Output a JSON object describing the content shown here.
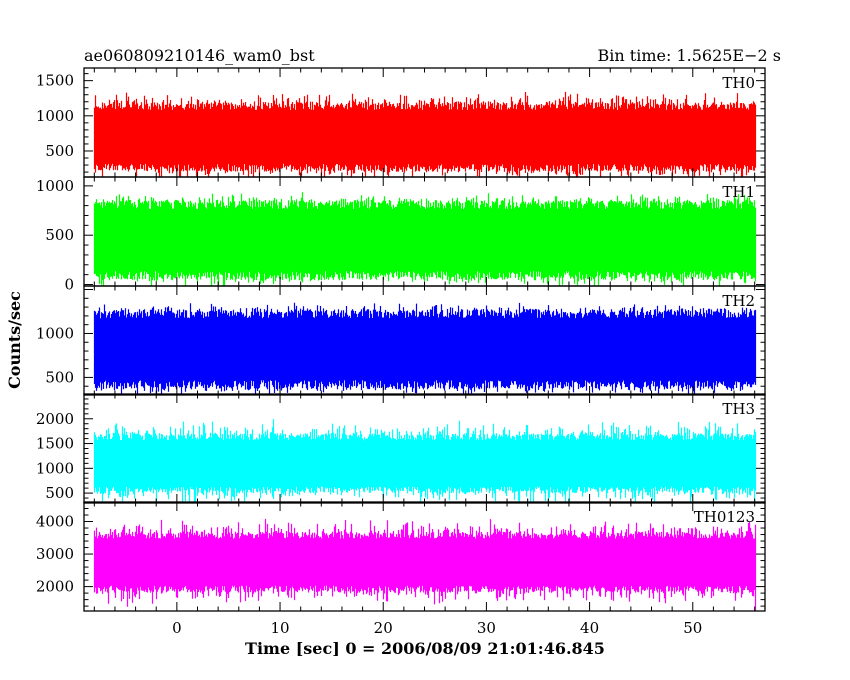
{
  "header": {
    "left_title": "ae060809210146_wam0_bst",
    "right_title": "Bin time: 1.5625E−2 s"
  },
  "chart_data": {
    "type": "line",
    "xlabel": "Time [sec] 0 = 2006/08/09 21:01:46.845",
    "ylabel": "Counts/sec",
    "xlim": [
      -9,
      57
    ],
    "x_range": [
      -8,
      56
    ],
    "bin_time": 0.015625,
    "x_ticks": [
      {
        "value": 0,
        "label": "0"
      },
      {
        "value": 10,
        "label": "10"
      },
      {
        "value": 20,
        "label": "20"
      },
      {
        "value": 30,
        "label": "30"
      },
      {
        "value": 40,
        "label": "40"
      },
      {
        "value": 50,
        "label": "50"
      }
    ],
    "grid": false,
    "panels": [
      {
        "name": "TH0",
        "color": "#ff0000",
        "ylim": [
          130,
          1680
        ],
        "typical_range": [
          250,
          1150
        ],
        "extreme_range": [
          150,
          1650
        ],
        "mean": 700,
        "y_ticks": [
          {
            "value": 500,
            "label": "500"
          },
          {
            "value": 1000,
            "label": "1000"
          },
          {
            "value": 1500,
            "label": "1500"
          }
        ]
      },
      {
        "name": "TH1",
        "color": "#00ff00",
        "ylim": [
          -15,
          1090
        ],
        "typical_range": [
          80,
          820
        ],
        "extreme_range": [
          0,
          1080
        ],
        "mean": 450,
        "y_ticks": [
          {
            "value": 0,
            "label": "0"
          },
          {
            "value": 500,
            "label": "500"
          },
          {
            "value": 1000,
            "label": "1000"
          }
        ]
      },
      {
        "name": "TH2",
        "color": "#0000ff",
        "ylim": [
          300,
          1540
        ],
        "typical_range": [
          420,
          1250
        ],
        "extreme_range": [
          320,
          1520
        ],
        "mean": 820,
        "y_ticks": [
          {
            "value": 500,
            "label": "500"
          },
          {
            "value": 1000,
            "label": "1000"
          }
        ]
      },
      {
        "name": "TH3",
        "color": "#00ffff",
        "ylim": [
          300,
          2500
        ],
        "typical_range": [
          550,
          1650
        ],
        "extreme_range": [
          350,
          2450
        ],
        "mean": 1100,
        "y_ticks": [
          {
            "value": 500,
            "label": "500"
          },
          {
            "value": 1000,
            "label": "1000"
          },
          {
            "value": 1500,
            "label": "1500"
          },
          {
            "value": 2000,
            "label": "2000"
          }
        ]
      },
      {
        "name": "TH0123",
        "color": "#ff00ff",
        "ylim": [
          1250,
          4600
        ],
        "typical_range": [
          1900,
          3600
        ],
        "extreme_range": [
          1300,
          4550
        ],
        "mean": 2750,
        "y_ticks": [
          {
            "value": 2000,
            "label": "2000"
          },
          {
            "value": 3000,
            "label": "3000"
          },
          {
            "value": 4000,
            "label": "4000"
          }
        ]
      }
    ]
  }
}
